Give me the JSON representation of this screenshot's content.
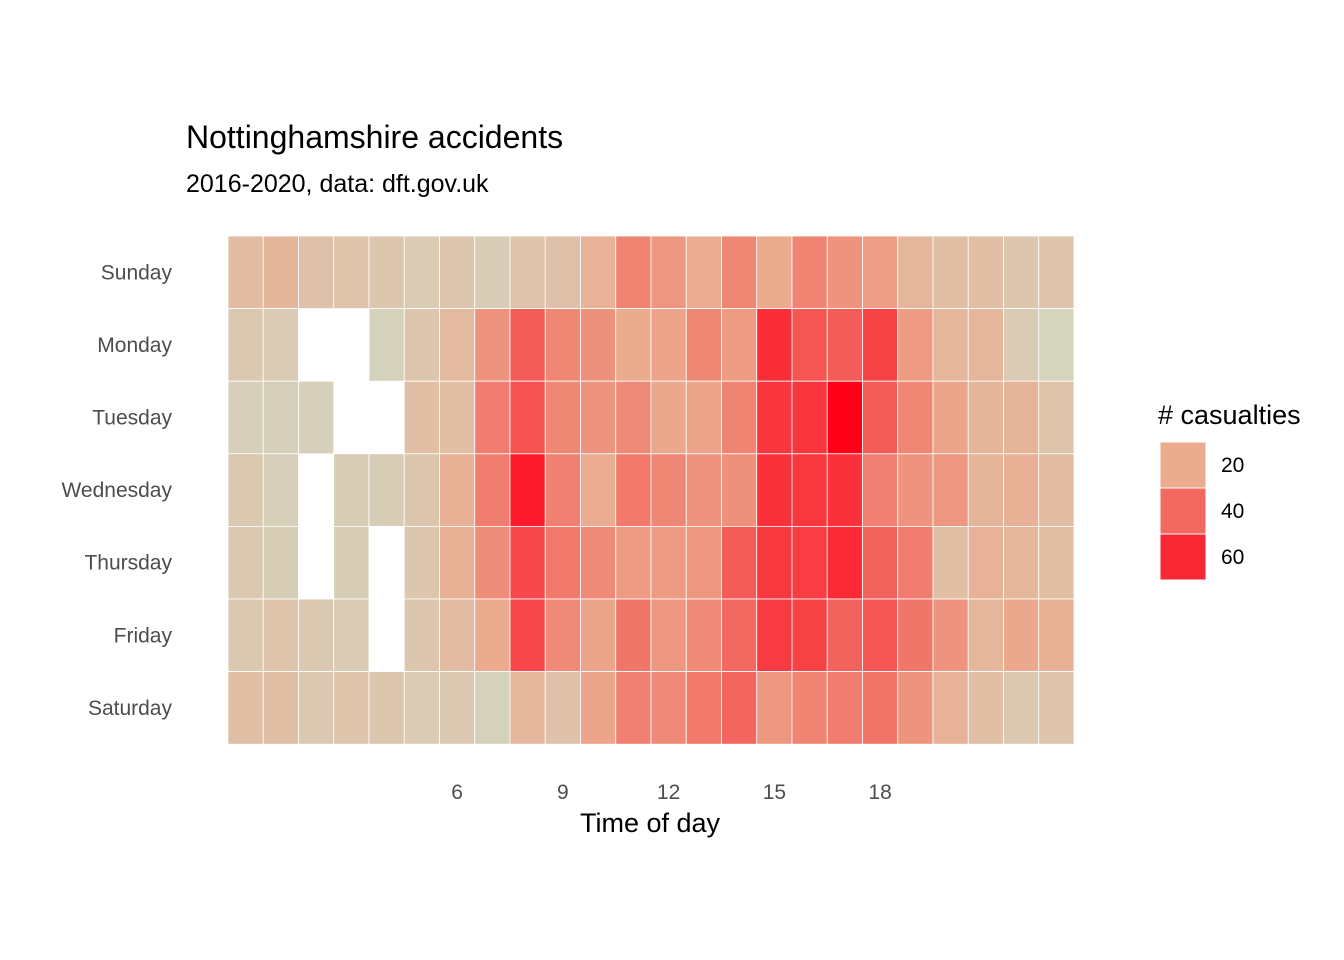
{
  "chart_data": {
    "type": "heatmap",
    "title": "Nottinghamshire accidents",
    "subtitle": "2016-2020, data: dft.gov.uk",
    "xlabel": "Time of day",
    "ylabel": "",
    "x": [
      0,
      1,
      2,
      3,
      4,
      5,
      6,
      7,
      8,
      9,
      10,
      11,
      12,
      13,
      14,
      15,
      16,
      17,
      18,
      19,
      20,
      21,
      22,
      23
    ],
    "x_ticks": [
      6,
      9,
      12,
      15,
      18
    ],
    "y": [
      "Sunday",
      "Monday",
      "Tuesday",
      "Wednesday",
      "Thursday",
      "Friday",
      "Saturday"
    ],
    "grid": false,
    "legend": {
      "title": "# casualties",
      "position": "right",
      "breaks": [
        20,
        40,
        60
      ]
    },
    "colors": {
      "low": "#cfdcc8",
      "mid": "#ebab8e",
      "high": "#ff0019"
    },
    "values": [
      [
        13,
        16,
        11,
        10,
        9,
        7,
        9,
        6,
        10,
        11,
        17,
        32,
        26,
        19,
        31,
        20,
        32,
        27,
        24,
        15,
        12,
        12,
        9,
        10
      ],
      [
        8,
        7,
        null,
        null,
        4,
        9,
        14,
        27,
        44,
        31,
        28,
        20,
        22,
        31,
        25,
        58,
        46,
        44,
        52,
        25,
        15,
        15,
        7,
        3
      ],
      [
        5,
        5,
        5,
        null,
        null,
        12,
        12,
        34,
        47,
        31,
        27,
        30,
        21,
        22,
        32,
        56,
        56,
        72,
        44,
        31,
        22,
        16,
        16,
        10
      ],
      [
        8,
        5,
        null,
        6,
        6,
        9,
        18,
        34,
        64,
        33,
        19,
        35,
        31,
        27,
        28,
        57,
        55,
        57,
        33,
        27,
        26,
        16,
        18,
        13
      ],
      [
        8,
        6,
        null,
        6,
        null,
        9,
        18,
        29,
        50,
        35,
        30,
        25,
        25,
        26,
        44,
        55,
        53,
        59,
        42,
        34,
        12,
        17,
        15,
        12
      ],
      [
        8,
        10,
        8,
        7,
        null,
        9,
        13,
        20,
        50,
        30,
        22,
        36,
        26,
        30,
        40,
        54,
        52,
        42,
        46,
        36,
        27,
        15,
        21,
        18
      ],
      [
        12,
        12,
        8,
        10,
        9,
        7,
        8,
        4,
        15,
        11,
        22,
        33,
        30,
        35,
        41,
        26,
        32,
        34,
        37,
        27,
        17,
        12,
        8,
        10
      ]
    ]
  }
}
